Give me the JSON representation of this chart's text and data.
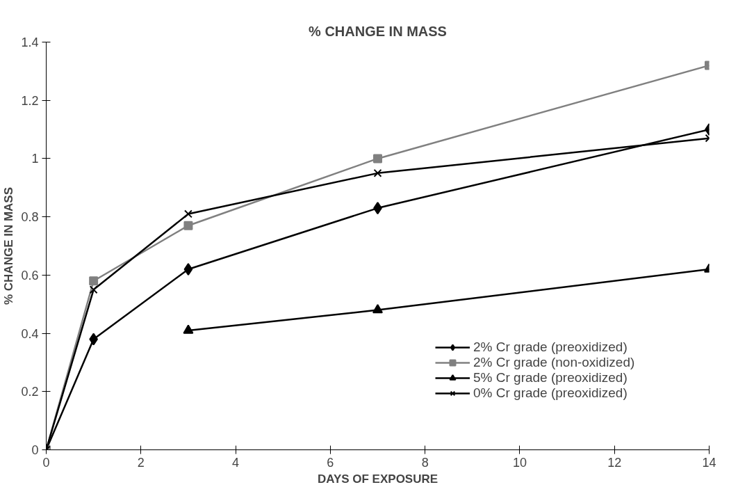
{
  "chart_data": {
    "type": "line",
    "title": "% CHANGE IN MASS",
    "xlabel": "DAYS OF EXPOSURE",
    "ylabel": "% CHANGE IN MASS",
    "xlim": [
      0,
      14
    ],
    "xticks": [
      0,
      2,
      4,
      6,
      8,
      10,
      12,
      14
    ],
    "ylim": [
      0,
      1.4
    ],
    "yticks": [
      0,
      0.2,
      0.4,
      0.6,
      0.8,
      1,
      1.2,
      1.4
    ],
    "grid": false,
    "legend": "bottom right",
    "series": [
      {
        "name": "2% Cr grade (preoxidized)",
        "color": "#000000",
        "marker": "diamond",
        "x": [
          0,
          1,
          3,
          7,
          14
        ],
        "values": [
          0,
          0.38,
          0.62,
          0.83,
          1.1
        ]
      },
      {
        "name": "2% Cr grade (non-oxidized)",
        "color": "#808080",
        "marker": "square",
        "x": [
          0,
          1,
          3,
          7,
          14
        ],
        "values": [
          0,
          0.58,
          0.77,
          1.0,
          1.32
        ]
      },
      {
        "name": "5% Cr grade (preoxidized)",
        "color": "#000000",
        "marker": "triangle",
        "x": [
          3,
          7,
          14
        ],
        "values": [
          0.41,
          0.48,
          0.62
        ]
      },
      {
        "name": "0% Cr grade (preoxidized)",
        "color": "#000000",
        "marker": "cross",
        "x": [
          0,
          1,
          3,
          7,
          14
        ],
        "values": [
          0,
          0.55,
          0.81,
          0.95,
          1.07
        ]
      }
    ]
  }
}
